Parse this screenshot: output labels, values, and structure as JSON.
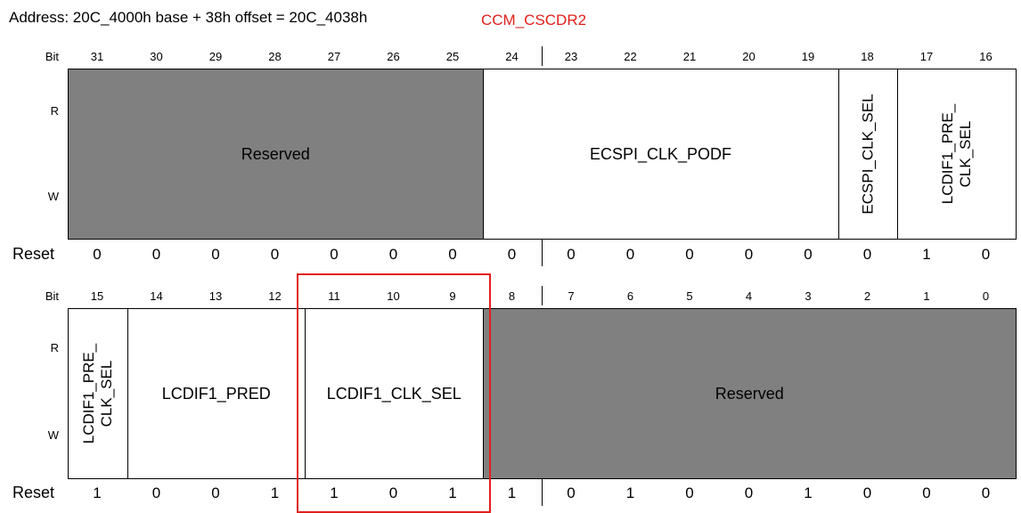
{
  "header": {
    "address": "Address: 20C_4000h base + 38h offset = 20C_4038h",
    "register_name": "CCM_CSCDR2"
  },
  "labels": {
    "bit": "Bit",
    "read": "R",
    "write": "W",
    "reset": "Reset"
  },
  "upper": {
    "bits": [
      "31",
      "30",
      "29",
      "28",
      "27",
      "26",
      "25",
      "24",
      "23",
      "22",
      "21",
      "20",
      "19",
      "18",
      "17",
      "16"
    ],
    "resets": [
      "0",
      "0",
      "0",
      "0",
      "0",
      "0",
      "0",
      "0",
      "0",
      "0",
      "0",
      "0",
      "0",
      "0",
      "1",
      "0"
    ],
    "fields": [
      {
        "name": "Reserved",
        "reserved": true,
        "from": 0,
        "span": 7,
        "vertical": false
      },
      {
        "name": "ECSPI_CLK_PODF",
        "reserved": false,
        "from": 7,
        "span": 6,
        "vertical": false
      },
      {
        "name": "ECSPI_CLK_SEL",
        "reserved": false,
        "from": 13,
        "span": 1,
        "vertical": true
      },
      {
        "name": "LCDIF1_PRE_\nCLK_SEL",
        "reserved": false,
        "from": 14,
        "span": 2,
        "vertical": true
      }
    ]
  },
  "lower": {
    "bits": [
      "15",
      "14",
      "13",
      "12",
      "11",
      "10",
      "9",
      "8",
      "7",
      "6",
      "5",
      "4",
      "3",
      "2",
      "1",
      "0"
    ],
    "resets": [
      "1",
      "0",
      "0",
      "1",
      "1",
      "0",
      "1",
      "1",
      "0",
      "1",
      "0",
      "0",
      "1",
      "0",
      "0",
      "0"
    ],
    "fields": [
      {
        "name": "LCDIF1_PRE_\nCLK_SEL",
        "reserved": false,
        "from": 0,
        "span": 1,
        "vertical": true
      },
      {
        "name": "LCDIF1_PRED",
        "reserved": false,
        "from": 1,
        "span": 3,
        "vertical": false
      },
      {
        "name": "LCDIF1_CLK_SEL",
        "reserved": false,
        "from": 4,
        "span": 3,
        "vertical": false
      },
      {
        "name": "Reserved",
        "reserved": true,
        "from": 7,
        "span": 9,
        "vertical": false
      }
    ]
  },
  "highlight": {
    "row": "lower",
    "from": 4,
    "span": 3
  },
  "colors": {
    "reserved": "#808080",
    "highlight": "#e0201b"
  }
}
